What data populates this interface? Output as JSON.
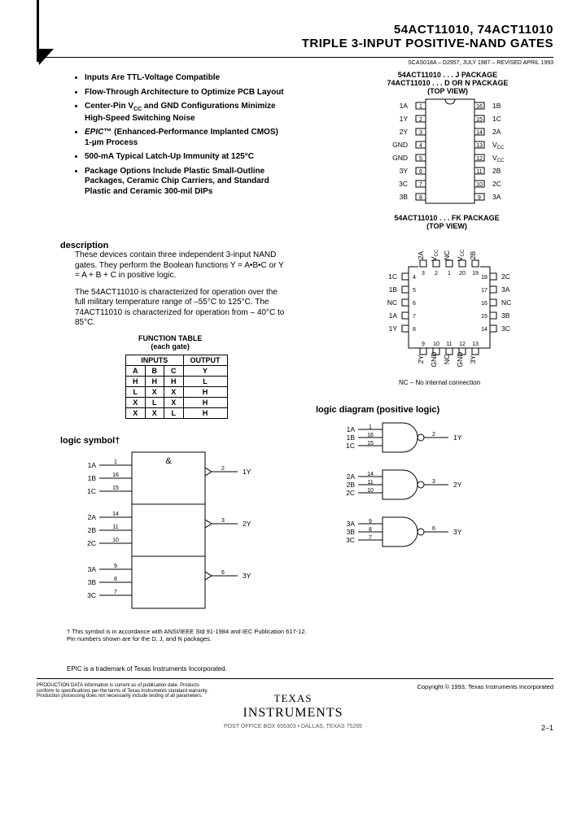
{
  "header": {
    "part_numbers": "54ACT11010, 74ACT11010",
    "title": "TRIPLE 3-INPUT POSITIVE-NAND GATES",
    "docnum": "SCAS018A – D2957, JULY 1987 – REVISED APRIL 1993"
  },
  "features": [
    "Inputs Are TTL-Voltage Compatible",
    "Flow-Through Architecture to Optimize PCB Layout",
    "Center-Pin V_CC and GND Configurations Minimize High-Speed Switching Noise",
    "EPIC™ (Enhanced-Performance Implanted CMOS) 1-µm Process",
    "500-mA Typical Latch-Up Immunity at 125°C",
    "Package Options Include Plastic Small-Outline Packages, Ceramic Chip Carriers, and Standard Plastic and Ceramic 300-mil DIPs"
  ],
  "sections": {
    "description": "description",
    "logic_symbol": "logic symbol†",
    "logic_diagram": "logic diagram (positive logic)"
  },
  "description": {
    "p1": "These devices contain three independent 3-input NAND gates. They perform the Boolean functions Y = A•B•C or Y = A + B + C in positive logic.",
    "p2": "The 54ACT11010 is characterized for operation over the full military temperature range of –55°C to 125°C. The 74ACT11010 is characterized for operation from – 40°C to 85°C."
  },
  "function_table": {
    "caption1": "FUNCTION TABLE",
    "caption2": "(each gate)",
    "header_inputs": "INPUTS",
    "header_output": "OUTPUT",
    "cols": [
      "A",
      "B",
      "C",
      "Y"
    ],
    "rows": [
      [
        "H",
        "H",
        "H",
        "L"
      ],
      [
        "L",
        "X",
        "X",
        "H"
      ],
      [
        "X",
        "L",
        "X",
        "H"
      ],
      [
        "X",
        "X",
        "L",
        "H"
      ]
    ]
  },
  "pkg_dip": {
    "caption1": "54ACT11010 . . . J PACKAGE",
    "caption2": "74ACT11010 . . . D OR N PACKAGE",
    "caption3": "(TOP VIEW)",
    "left": [
      "1A",
      "1Y",
      "2Y",
      "GND",
      "GND",
      "3Y",
      "3C",
      "3B"
    ],
    "right": [
      "1B",
      "1C",
      "2A",
      "V_CC",
      "V_CC",
      "2B",
      "2C",
      "3A"
    ],
    "pins": 16
  },
  "pkg_fk": {
    "caption1": "54ACT11010 . . . FK PACKAGE",
    "caption2": "(TOP VIEW)",
    "top": [
      "2A",
      "V_CC",
      "NC",
      "V_CC",
      "2B"
    ],
    "left": [
      "1C",
      "1B",
      "NC",
      "1A",
      "1Y"
    ],
    "right": [
      "2C",
      "3A",
      "NC",
      "3B",
      "3C"
    ],
    "bottom": [
      "2Y",
      "GND",
      "NC",
      "GND",
      "3Y"
    ],
    "top_pins": [
      "3",
      "2",
      "1",
      "20",
      "19"
    ],
    "left_pins": [
      "4",
      "5",
      "6",
      "7",
      "8"
    ],
    "right_pins": [
      "18",
      "17",
      "16",
      "15",
      "14"
    ],
    "bottom_pins": [
      "9",
      "10",
      "11",
      "12",
      "13"
    ],
    "nc_note": "NC – No internal connection"
  },
  "logic_diagram": {
    "gates": [
      {
        "inputs": [
          "1A",
          "1B",
          "1C"
        ],
        "pins": [
          "1",
          "16",
          "15"
        ],
        "out": "1Y",
        "out_pin": "2"
      },
      {
        "inputs": [
          "2A",
          "2B",
          "2C"
        ],
        "pins": [
          "14",
          "11",
          "10"
        ],
        "out": "2Y",
        "out_pin": "3"
      },
      {
        "inputs": [
          "3A",
          "3B",
          "3C"
        ],
        "pins": [
          "9",
          "8",
          "7"
        ],
        "out": "3Y",
        "out_pin": "6"
      }
    ],
    "colors": {
      "line": "#000000",
      "fill": "#ffffff"
    }
  },
  "logic_symbol": {
    "amp": "&",
    "groups": [
      {
        "inputs": [
          "1A",
          "1B",
          "1C"
        ],
        "pins": [
          "1",
          "16",
          "15"
        ],
        "out": "1Y",
        "out_pin": "2"
      },
      {
        "inputs": [
          "2A",
          "2B",
          "2C"
        ],
        "pins": [
          "14",
          "11",
          "10"
        ],
        "out": "2Y",
        "out_pin": "3"
      },
      {
        "inputs": [
          "3A",
          "3B",
          "3C"
        ],
        "pins": [
          "9",
          "8",
          "7"
        ],
        "out": "3Y",
        "out_pin": "6"
      }
    ]
  },
  "footnotes": {
    "dagger": "† This symbol is in accordance with ANSI/IEEE Std 91-1984 and IEC Publication 617-12.",
    "pins": "Pin numbers shown are for the D, J, and N packages.",
    "trademark": "EPIC is a trademark of Texas Instruments Incorporated."
  },
  "footer": {
    "prod_data": "PRODUCTION DATA information is current as of publication date. Products conform to specifications per the terms of Texas Instruments standard warranty. Production processing does not necessarily include testing of all parameters.",
    "copyright": "Copyright © 1993, Texas Instruments Incorporated",
    "logo1": "TEXAS",
    "logo2": "INSTRUMENTS",
    "pobox": "POST OFFICE BOX 655303 • DALLAS, TEXAS 75265",
    "pagenum": "2–1"
  }
}
